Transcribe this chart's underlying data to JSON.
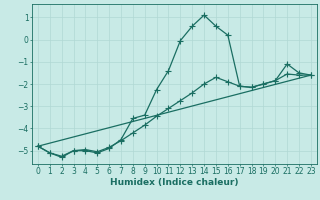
{
  "xlabel": "Humidex (Indice chaleur)",
  "bg_color": "#c8eae6",
  "grid_color": "#b0d8d4",
  "line_color": "#1a6e62",
  "xlim": [
    -0.5,
    23.5
  ],
  "ylim": [
    -5.6,
    1.6
  ],
  "yticks": [
    1,
    0,
    -1,
    -2,
    -3,
    -4,
    -5
  ],
  "xticks": [
    0,
    1,
    2,
    3,
    4,
    5,
    6,
    7,
    8,
    9,
    10,
    11,
    12,
    13,
    14,
    15,
    16,
    17,
    18,
    19,
    20,
    21,
    22,
    23
  ],
  "curve1_x": [
    0,
    1,
    2,
    3,
    4,
    5,
    6,
    7,
    8,
    9,
    10,
    11,
    12,
    13,
    14,
    15,
    16,
    17,
    18,
    19,
    20,
    21,
    22,
    23
  ],
  "curve1_y": [
    -4.8,
    -5.1,
    -5.3,
    -5.0,
    -5.0,
    -5.1,
    -4.9,
    -4.5,
    -3.55,
    -3.4,
    -2.25,
    -1.4,
    -0.05,
    0.6,
    1.1,
    0.6,
    0.2,
    -2.1,
    -2.15,
    -2.0,
    -1.85,
    -1.1,
    -1.5,
    -1.6
  ],
  "curve2_x": [
    0,
    1,
    2,
    3,
    4,
    5,
    6,
    7,
    8,
    9,
    10,
    11,
    12,
    13,
    14,
    15,
    16,
    17,
    18,
    19,
    20,
    21,
    22,
    23
  ],
  "curve2_y": [
    -4.8,
    -5.1,
    -5.25,
    -5.0,
    -4.95,
    -5.05,
    -4.85,
    -4.55,
    -4.2,
    -3.85,
    -3.45,
    -3.1,
    -2.75,
    -2.4,
    -2.0,
    -1.7,
    -1.9,
    -2.1,
    -2.15,
    -2.0,
    -1.85,
    -1.55,
    -1.6,
    -1.6
  ],
  "curve3_x": [
    0,
    23
  ],
  "curve3_y": [
    -4.8,
    -1.6
  ],
  "marker_size": 2.5,
  "linewidth": 0.9,
  "tick_fontsize": 5.5,
  "label_fontsize": 6.5
}
